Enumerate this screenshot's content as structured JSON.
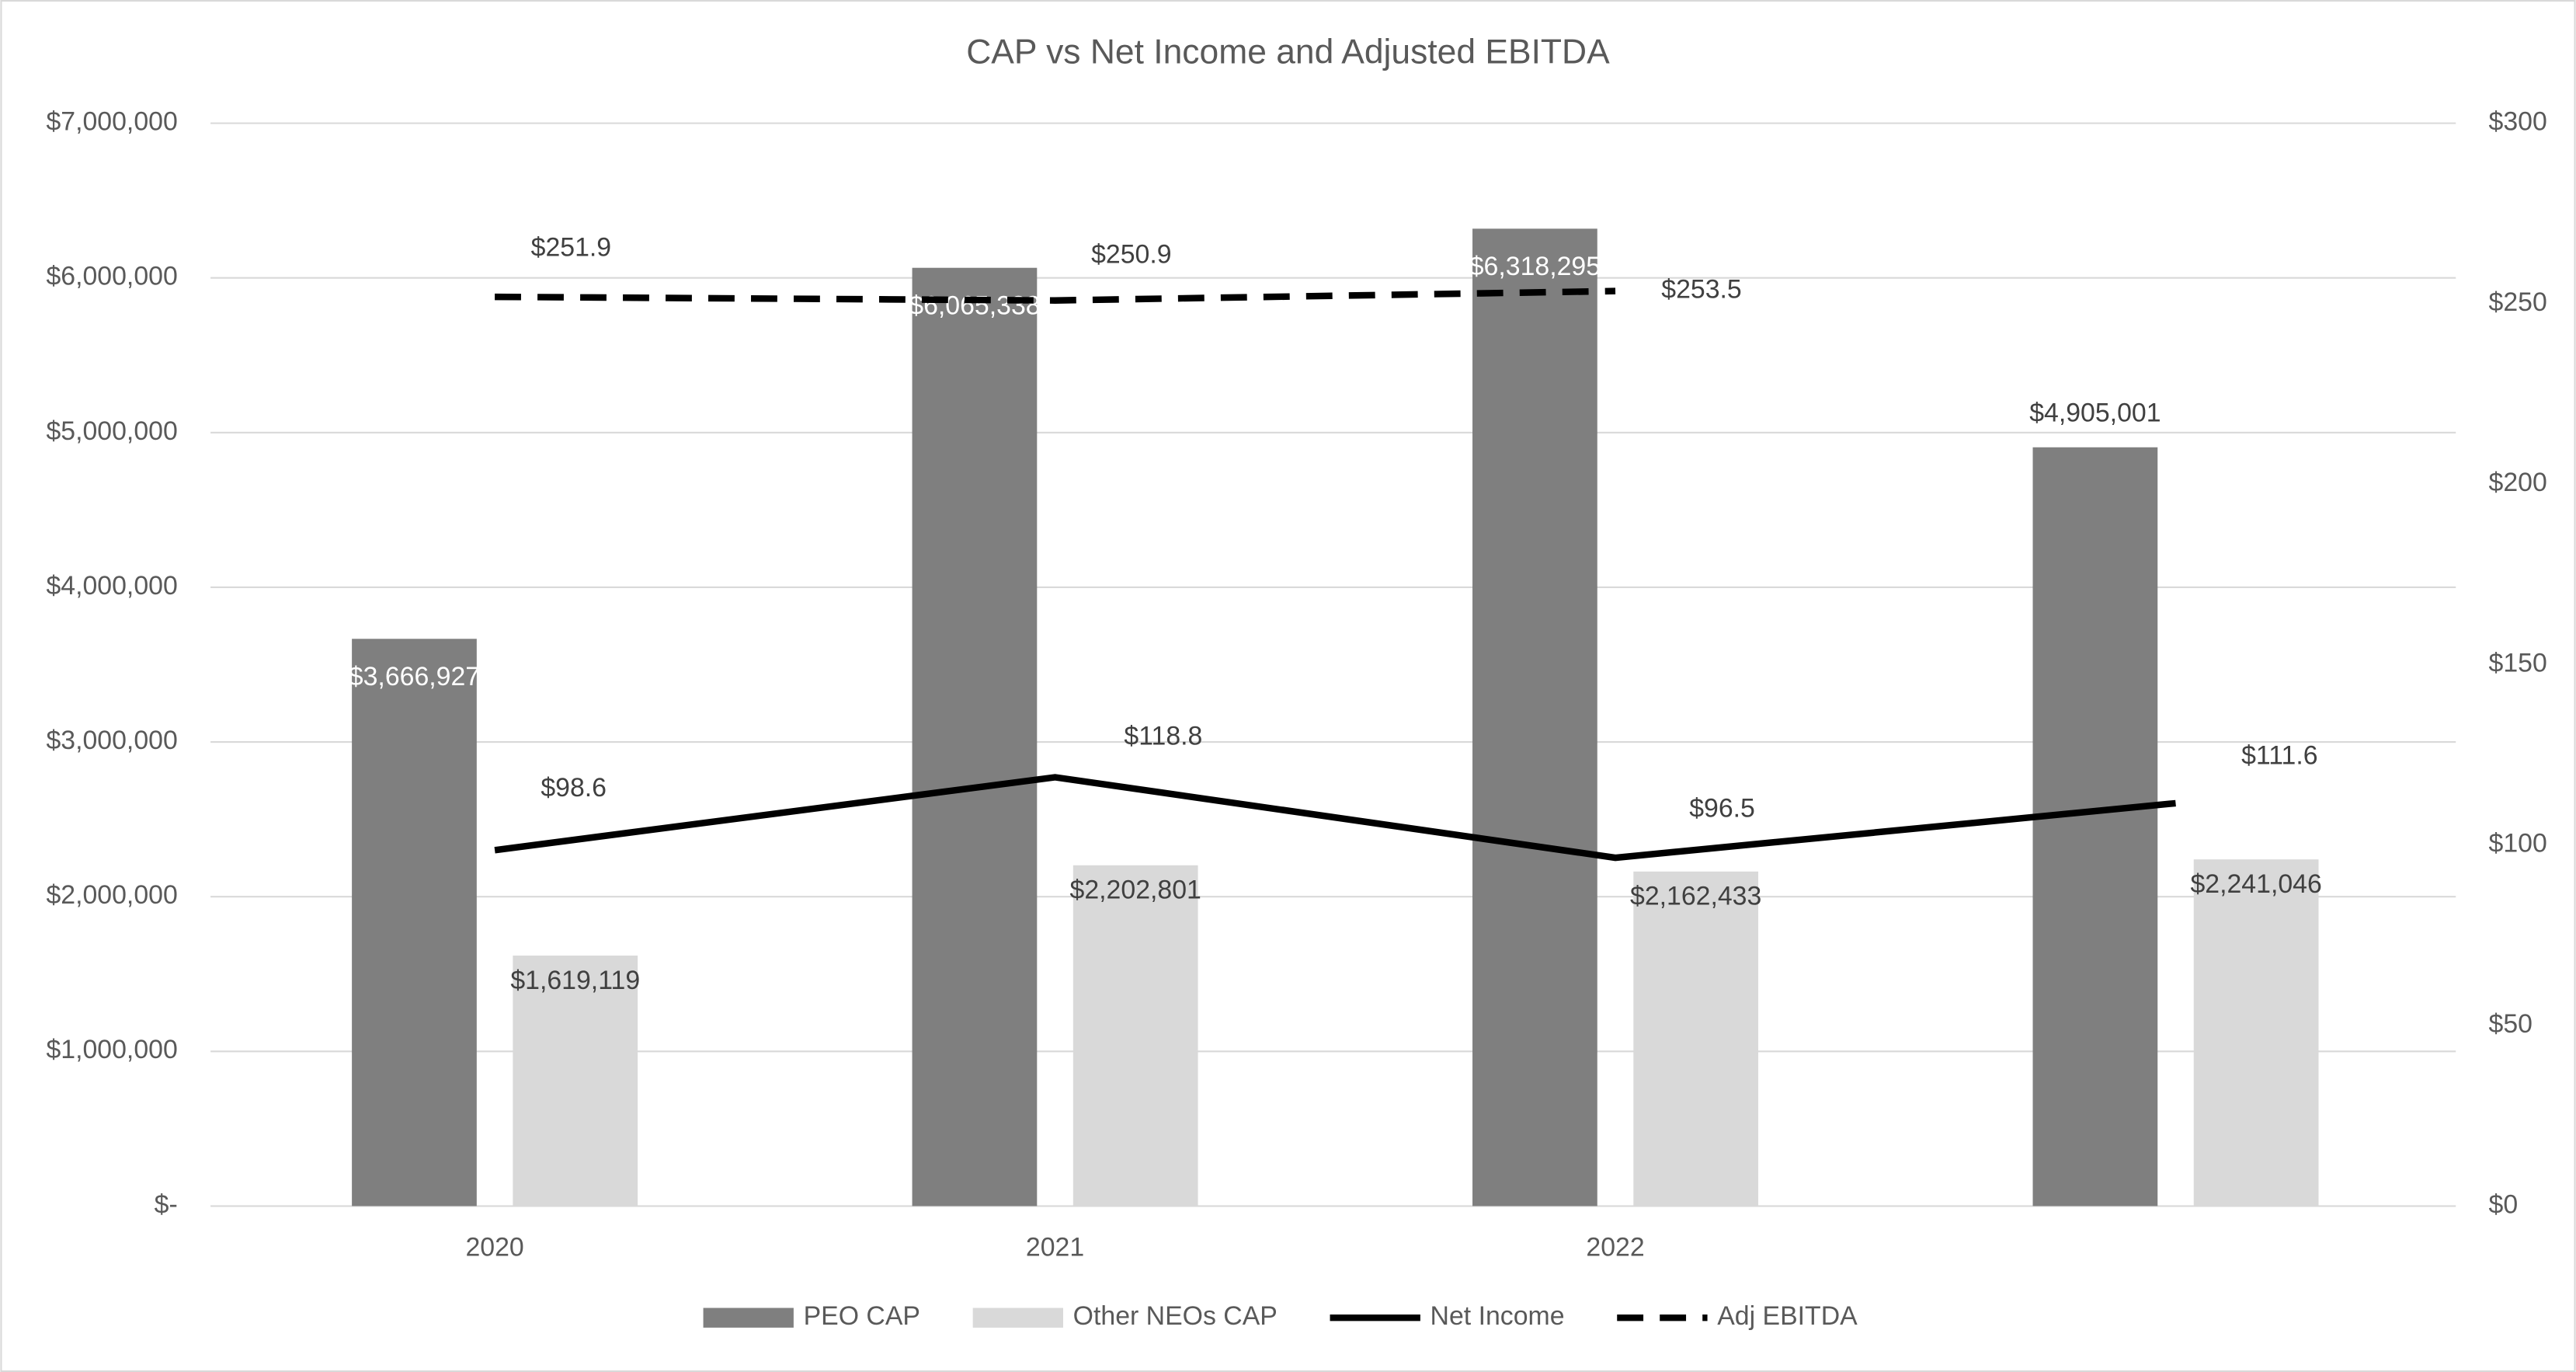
{
  "chart_data": {
    "type": "bar",
    "title": "CAP vs Net Income and Adjusted EBITDA",
    "categories": [
      "2020",
      "2021",
      "2022",
      null
    ],
    "series": [
      {
        "name": "PEO CAP",
        "type": "bar",
        "color": "#7f7f7f",
        "values": [
          3666927,
          6065338,
          6318295,
          4905001
        ],
        "value_labels": [
          "$3,666,927",
          "$6,065,338",
          "$6,318,295",
          "$4,905,001"
        ]
      },
      {
        "name": "Other NEOs CAP",
        "type": "bar",
        "color": "#d9d9d9",
        "values": [
          1619119,
          2202801,
          2162433,
          2241046
        ],
        "value_labels": [
          "$1,619,119",
          "$2,202,801",
          "$2,162,433",
          "$2,241,046"
        ]
      },
      {
        "name": "Net Income",
        "type": "line",
        "axis": "y2",
        "color": "#000000",
        "line_style": "solid",
        "values": [
          98.6,
          118.8,
          96.5,
          111.6
        ],
        "value_labels": [
          "$98.6",
          "$118.8",
          "$96.5",
          "$111.6"
        ]
      },
      {
        "name": "Adj EBITDA",
        "type": "line",
        "axis": "y2",
        "color": "#000000",
        "line_style": "dashed",
        "values": [
          251.9,
          250.9,
          253.5,
          null
        ],
        "value_labels": [
          "$251.9",
          "$250.9",
          "$253.5",
          null
        ]
      }
    ],
    "ylim": [
      0,
      7000000
    ],
    "yticks": [
      {
        "value": 0,
        "label": "$-"
      },
      {
        "value": 1000000,
        "label": "$1,000,000"
      },
      {
        "value": 2000000,
        "label": "$2,000,000"
      },
      {
        "value": 3000000,
        "label": "$3,000,000"
      },
      {
        "value": 4000000,
        "label": "$4,000,000"
      },
      {
        "value": 5000000,
        "label": "$5,000,000"
      },
      {
        "value": 6000000,
        "label": "$6,000,000"
      },
      {
        "value": 7000000,
        "label": "$7,000,000"
      }
    ],
    "y2lim": [
      0,
      300
    ],
    "y2ticks": [
      {
        "value": 0,
        "label": "$0"
      },
      {
        "value": 50,
        "label": "$50"
      },
      {
        "value": 100,
        "label": "$100"
      },
      {
        "value": 150,
        "label": "$150"
      },
      {
        "value": 200,
        "label": "$200"
      },
      {
        "value": 250,
        "label": "$250"
      },
      {
        "value": 300,
        "label": "$300"
      }
    ],
    "grid": true,
    "legend": "bottom"
  }
}
